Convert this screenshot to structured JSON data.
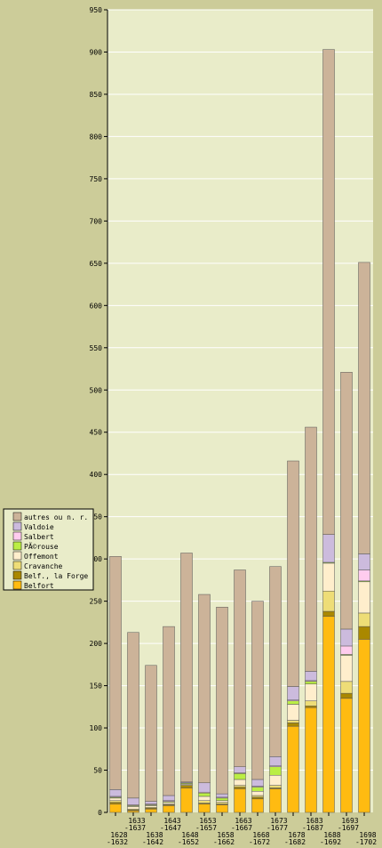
{
  "colors": {
    "page_background": "#cccc99",
    "plot_background": "#e9ecc9",
    "gridline": "#ffffff",
    "bar_outline": "#555555"
  },
  "chart_data": {
    "type": "bar",
    "stacked": true,
    "ylim": [
      0,
      950
    ],
    "y_ticks": [
      0,
      50,
      100,
      150,
      200,
      250,
      300,
      350,
      400,
      450,
      500,
      550,
      600,
      650,
      700,
      750,
      800,
      850,
      900,
      950
    ],
    "grid": true,
    "legend_position": "left",
    "categories": [
      {
        "line1": "1628",
        "line2": "-1632",
        "row": "lower"
      },
      {
        "line1": "1633",
        "line2": "-1637",
        "row": "upper"
      },
      {
        "line1": "1638",
        "line2": "-1642",
        "row": "lower"
      },
      {
        "line1": "1643",
        "line2": "-1647",
        "row": "upper"
      },
      {
        "line1": "1648",
        "line2": "-1652",
        "row": "lower"
      },
      {
        "line1": "1653",
        "line2": "-1657",
        "row": "upper"
      },
      {
        "line1": "1658",
        "line2": "-1662",
        "row": "lower"
      },
      {
        "line1": "1663",
        "line2": "-1667",
        "row": "upper"
      },
      {
        "line1": "1668",
        "line2": "-1672",
        "row": "lower"
      },
      {
        "line1": "1673",
        "line2": "-1677",
        "row": "upper"
      },
      {
        "line1": "1678",
        "line2": "-1682",
        "row": "lower"
      },
      {
        "line1": "1683",
        "line2": "-1687",
        "row": "upper"
      },
      {
        "line1": "1688",
        "line2": "-1692",
        "row": "lower"
      },
      {
        "line1": "1693",
        "line2": "-1697",
        "row": "upper"
      },
      {
        "line1": "1698",
        "line2": "-1702",
        "row": "lower"
      }
    ],
    "series": [
      {
        "name": "Belfort",
        "color": "#ffbb11",
        "values": [
          10,
          2,
          4,
          8,
          29,
          10,
          9,
          28,
          16,
          28,
          102,
          124,
          232,
          135,
          205
        ]
      },
      {
        "name": "Belf., la Forge",
        "color": "#aa8800",
        "values": [
          2,
          1,
          1,
          1,
          3,
          1,
          1,
          2,
          2,
          1,
          4,
          2,
          6,
          6,
          15
        ]
      },
      {
        "name": "Cravanche",
        "color": "#eedd77",
        "values": [
          2,
          1,
          1,
          1,
          1,
          3,
          2,
          2,
          2,
          3,
          3,
          6,
          24,
          14,
          16
        ]
      },
      {
        "name": "Offemont",
        "color": "#ffeecc",
        "values": [
          3,
          3,
          2,
          2,
          1,
          5,
          2,
          7,
          5,
          12,
          19,
          20,
          33,
          31,
          37
        ]
      },
      {
        "name": "PÃ©rouse",
        "color": "#bbee44",
        "values": [
          1,
          1,
          1,
          1,
          1,
          4,
          3,
          7,
          5,
          10,
          4,
          3,
          1,
          1,
          1
        ]
      },
      {
        "name": "Salbert",
        "color": "#ffccee",
        "values": [
          1,
          1,
          1,
          1,
          0,
          1,
          1,
          1,
          1,
          1,
          1,
          1,
          0,
          10,
          13
        ]
      },
      {
        "name": "Valdoie",
        "color": "#ccbbdd",
        "values": [
          8,
          8,
          3,
          6,
          1,
          11,
          4,
          7,
          8,
          11,
          16,
          11,
          33,
          20,
          19
        ]
      },
      {
        "name": "autres ou n. r.",
        "color": "#ccb399",
        "values": [
          276,
          196,
          161,
          200,
          271,
          223,
          221,
          233,
          211,
          225,
          267,
          289,
          574,
          304,
          345
        ]
      }
    ]
  }
}
